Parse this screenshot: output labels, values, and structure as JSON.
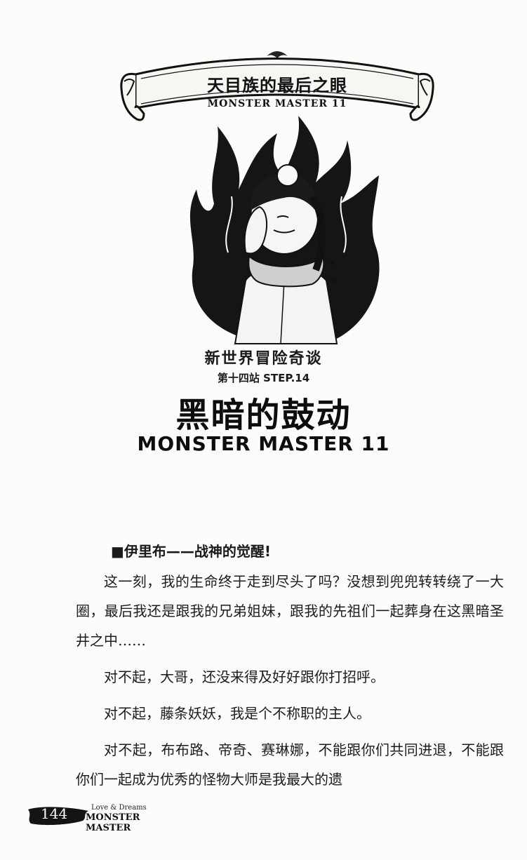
{
  "banner": {
    "title": "天目族的最后之眼",
    "subtitle": "MONSTER MASTER 11"
  },
  "illustration": {
    "icon": "dark-flame-character-illustration"
  },
  "chapter": {
    "series_title": "新世界冒险奇谈",
    "step_label": "第十四站 STEP.14",
    "title": "黑暗的鼓动",
    "subtitle": "MONSTER MASTER 11"
  },
  "section": {
    "heading": "■伊里布——战神的觉醒!"
  },
  "paragraphs": [
    "这一刻，我的生命终于走到尽头了吗？没想到兜兜转转绕了一大圈，最后我还是跟我的兄弟姐妹，跟我的先祖们一起葬身在这黑暗圣井之中……",
    "对不起，大哥，还没来得及好好跟你打招呼。",
    "对不起，藤条妖妖，我是个不称职的主人。",
    "对不起，布布路、帝奇、赛琳娜，不能跟你们共同进退，不能跟你们一起成为优秀的怪物大师是我最大的遗"
  ],
  "footer": {
    "page_number": "144",
    "tagline": "Love & Dreams",
    "brand": "MONSTER MASTER"
  }
}
